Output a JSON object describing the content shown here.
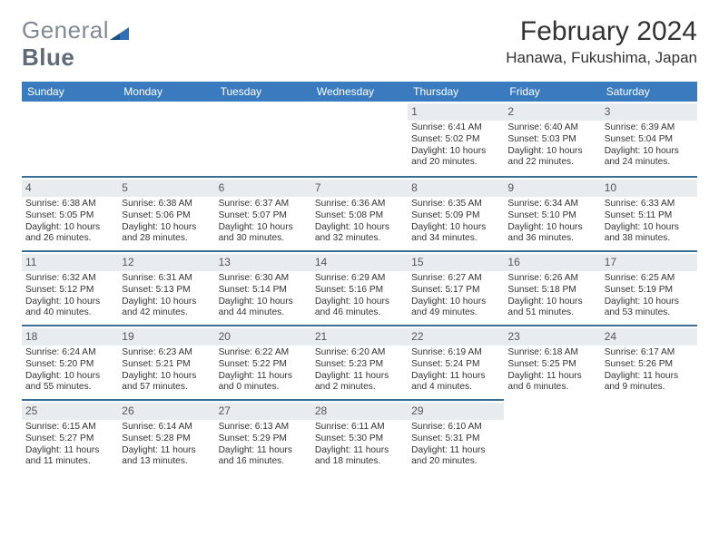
{
  "logo": {
    "text_light": "General",
    "text_bold": "Blue"
  },
  "title": "February 2024",
  "location": "Hanawa, Fukushima, Japan",
  "colors": {
    "header_bg": "#3a7bbf",
    "header_text": "#ffffff",
    "daynum_bg": "#e9ecef",
    "row_sep": "#3a6d9a",
    "body_text": "#333333",
    "logo_accent": "#2f6fb3"
  },
  "day_headers": [
    "Sunday",
    "Monday",
    "Tuesday",
    "Wednesday",
    "Thursday",
    "Friday",
    "Saturday"
  ],
  "cells": [
    {
      "blank": true
    },
    {
      "blank": true
    },
    {
      "blank": true
    },
    {
      "blank": true
    },
    {
      "day": "1",
      "sunrise": "Sunrise: 6:41 AM",
      "sunset": "Sunset: 5:02 PM",
      "daylight": "Daylight: 10 hours and 20 minutes."
    },
    {
      "day": "2",
      "sunrise": "Sunrise: 6:40 AM",
      "sunset": "Sunset: 5:03 PM",
      "daylight": "Daylight: 10 hours and 22 minutes."
    },
    {
      "day": "3",
      "sunrise": "Sunrise: 6:39 AM",
      "sunset": "Sunset: 5:04 PM",
      "daylight": "Daylight: 10 hours and 24 minutes."
    },
    {
      "day": "4",
      "sunrise": "Sunrise: 6:38 AM",
      "sunset": "Sunset: 5:05 PM",
      "daylight": "Daylight: 10 hours and 26 minutes."
    },
    {
      "day": "5",
      "sunrise": "Sunrise: 6:38 AM",
      "sunset": "Sunset: 5:06 PM",
      "daylight": "Daylight: 10 hours and 28 minutes."
    },
    {
      "day": "6",
      "sunrise": "Sunrise: 6:37 AM",
      "sunset": "Sunset: 5:07 PM",
      "daylight": "Daylight: 10 hours and 30 minutes."
    },
    {
      "day": "7",
      "sunrise": "Sunrise: 6:36 AM",
      "sunset": "Sunset: 5:08 PM",
      "daylight": "Daylight: 10 hours and 32 minutes."
    },
    {
      "day": "8",
      "sunrise": "Sunrise: 6:35 AM",
      "sunset": "Sunset: 5:09 PM",
      "daylight": "Daylight: 10 hours and 34 minutes."
    },
    {
      "day": "9",
      "sunrise": "Sunrise: 6:34 AM",
      "sunset": "Sunset: 5:10 PM",
      "daylight": "Daylight: 10 hours and 36 minutes."
    },
    {
      "day": "10",
      "sunrise": "Sunrise: 6:33 AM",
      "sunset": "Sunset: 5:11 PM",
      "daylight": "Daylight: 10 hours and 38 minutes."
    },
    {
      "day": "11",
      "sunrise": "Sunrise: 6:32 AM",
      "sunset": "Sunset: 5:12 PM",
      "daylight": "Daylight: 10 hours and 40 minutes."
    },
    {
      "day": "12",
      "sunrise": "Sunrise: 6:31 AM",
      "sunset": "Sunset: 5:13 PM",
      "daylight": "Daylight: 10 hours and 42 minutes."
    },
    {
      "day": "13",
      "sunrise": "Sunrise: 6:30 AM",
      "sunset": "Sunset: 5:14 PM",
      "daylight": "Daylight: 10 hours and 44 minutes."
    },
    {
      "day": "14",
      "sunrise": "Sunrise: 6:29 AM",
      "sunset": "Sunset: 5:16 PM",
      "daylight": "Daylight: 10 hours and 46 minutes."
    },
    {
      "day": "15",
      "sunrise": "Sunrise: 6:27 AM",
      "sunset": "Sunset: 5:17 PM",
      "daylight": "Daylight: 10 hours and 49 minutes."
    },
    {
      "day": "16",
      "sunrise": "Sunrise: 6:26 AM",
      "sunset": "Sunset: 5:18 PM",
      "daylight": "Daylight: 10 hours and 51 minutes."
    },
    {
      "day": "17",
      "sunrise": "Sunrise: 6:25 AM",
      "sunset": "Sunset: 5:19 PM",
      "daylight": "Daylight: 10 hours and 53 minutes."
    },
    {
      "day": "18",
      "sunrise": "Sunrise: 6:24 AM",
      "sunset": "Sunset: 5:20 PM",
      "daylight": "Daylight: 10 hours and 55 minutes."
    },
    {
      "day": "19",
      "sunrise": "Sunrise: 6:23 AM",
      "sunset": "Sunset: 5:21 PM",
      "daylight": "Daylight: 10 hours and 57 minutes."
    },
    {
      "day": "20",
      "sunrise": "Sunrise: 6:22 AM",
      "sunset": "Sunset: 5:22 PM",
      "daylight": "Daylight: 11 hours and 0 minutes."
    },
    {
      "day": "21",
      "sunrise": "Sunrise: 6:20 AM",
      "sunset": "Sunset: 5:23 PM",
      "daylight": "Daylight: 11 hours and 2 minutes."
    },
    {
      "day": "22",
      "sunrise": "Sunrise: 6:19 AM",
      "sunset": "Sunset: 5:24 PM",
      "daylight": "Daylight: 11 hours and 4 minutes."
    },
    {
      "day": "23",
      "sunrise": "Sunrise: 6:18 AM",
      "sunset": "Sunset: 5:25 PM",
      "daylight": "Daylight: 11 hours and 6 minutes."
    },
    {
      "day": "24",
      "sunrise": "Sunrise: 6:17 AM",
      "sunset": "Sunset: 5:26 PM",
      "daylight": "Daylight: 11 hours and 9 minutes."
    },
    {
      "day": "25",
      "sunrise": "Sunrise: 6:15 AM",
      "sunset": "Sunset: 5:27 PM",
      "daylight": "Daylight: 11 hours and 11 minutes."
    },
    {
      "day": "26",
      "sunrise": "Sunrise: 6:14 AM",
      "sunset": "Sunset: 5:28 PM",
      "daylight": "Daylight: 11 hours and 13 minutes."
    },
    {
      "day": "27",
      "sunrise": "Sunrise: 6:13 AM",
      "sunset": "Sunset: 5:29 PM",
      "daylight": "Daylight: 11 hours and 16 minutes."
    },
    {
      "day": "28",
      "sunrise": "Sunrise: 6:11 AM",
      "sunset": "Sunset: 5:30 PM",
      "daylight": "Daylight: 11 hours and 18 minutes."
    },
    {
      "day": "29",
      "sunrise": "Sunrise: 6:10 AM",
      "sunset": "Sunset: 5:31 PM",
      "daylight": "Daylight: 11 hours and 20 minutes."
    },
    {
      "blank": true
    },
    {
      "blank": true
    }
  ]
}
